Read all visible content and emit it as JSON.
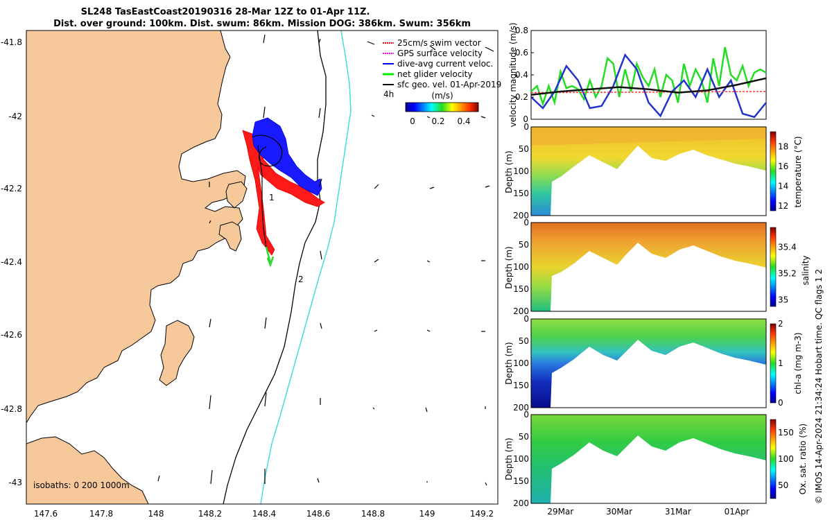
{
  "title": {
    "line1": "SL248 TasEastCoast20190316 28-Mar 12Z to 01-Apr 11Z.",
    "line2": "Dist. over ground: 100km. Dist. swum: 86km. Mission DOG: 386km. Swum: 356km"
  },
  "map": {
    "lon_ticks": [
      "147.6",
      "147.8",
      "148",
      "148.2",
      "148.4",
      "148.6",
      "148.8",
      "149",
      "149.2"
    ],
    "lat_ticks": [
      "-41.8",
      "-42",
      "-42.2",
      "-42.4",
      "-42.6",
      "-42.8",
      "-43"
    ],
    "legend": [
      {
        "label": "25cm/s swim vector",
        "color": "#ff0000"
      },
      {
        "label": "GPS surface velocity",
        "color": "#ff00ff"
      },
      {
        "label": "dive-avg current veloc.",
        "color": "#0000ff"
      },
      {
        "label": "net glider velocity",
        "color": "#00ee00"
      },
      {
        "label": "sfc geo. vel. 01-Apr-2019",
        "color": "#000000"
      }
    ],
    "colorbar": {
      "unit": "(m/s)",
      "ticks": [
        "0",
        "0.2",
        "0.4"
      ],
      "scale_note": "4h"
    },
    "isobaths_label": "isobaths: 0   200  1000m",
    "waypoints": [
      "1",
      "2"
    ]
  },
  "chart_data": [
    {
      "type": "line",
      "title": "",
      "xlabel": "",
      "ylabel": "velocity magnitude (m/s)",
      "ylim": [
        0,
        0.8
      ],
      "yticks": [
        "0",
        "0.2",
        "0.4",
        "0.6",
        "0.8"
      ],
      "xlim_days": [
        0,
        4
      ],
      "series": [
        {
          "name": "net glider velocity",
          "color": "#22dd22",
          "x": [
            0,
            0.1,
            0.2,
            0.3,
            0.4,
            0.5,
            0.6,
            0.7,
            0.8,
            0.9,
            1.0,
            1.1,
            1.2,
            1.3,
            1.4,
            1.5,
            1.6,
            1.7,
            1.8,
            1.9,
            2.0,
            2.1,
            2.2,
            2.3,
            2.4,
            2.5,
            2.6,
            2.7,
            2.8,
            2.9,
            3.0,
            3.1,
            3.2,
            3.3,
            3.4,
            3.5,
            3.6,
            3.7,
            3.8,
            3.9,
            4.0
          ],
          "values": [
            0.25,
            0.3,
            0.14,
            0.3,
            0.15,
            0.43,
            0.28,
            0.3,
            0.27,
            0.18,
            0.35,
            0.2,
            0.3,
            0.55,
            0.5,
            0.2,
            0.45,
            0.25,
            0.5,
            0.38,
            0.3,
            0.45,
            0.2,
            0.4,
            0.35,
            0.15,
            0.5,
            0.3,
            0.45,
            0.35,
            0.15,
            0.55,
            0.3,
            0.65,
            0.4,
            0.35,
            0.48,
            0.3,
            0.42,
            0.45,
            0.42
          ]
        },
        {
          "name": "dive-avg current veloc.",
          "color": "#2233cc",
          "x": [
            0,
            0.2,
            0.4,
            0.6,
            0.8,
            1.0,
            1.2,
            1.4,
            1.6,
            1.8,
            2.0,
            2.2,
            2.4,
            2.6,
            2.8,
            3.0,
            3.2,
            3.4,
            3.6,
            3.8,
            4.0
          ],
          "values": [
            0.2,
            0.1,
            0.25,
            0.48,
            0.35,
            0.1,
            0.12,
            0.3,
            0.58,
            0.45,
            0.15,
            0.03,
            0.25,
            0.35,
            0.2,
            0.45,
            0.2,
            0.35,
            0.05,
            0.02,
            0.15
          ]
        },
        {
          "name": "25cm/s swim vector",
          "color": "#ff3333",
          "x": [
            0,
            4
          ],
          "values": [
            0.24,
            0.25
          ]
        },
        {
          "name": "sfc geo. vel. 01-Apr-2019",
          "color": "#111111",
          "x": [
            0,
            0.5,
            1.0,
            1.5,
            2.0,
            2.5,
            3.0,
            3.5,
            4.0
          ],
          "values": [
            0.22,
            0.25,
            0.27,
            0.29,
            0.27,
            0.24,
            0.26,
            0.31,
            0.37
          ]
        }
      ]
    },
    {
      "type": "heatmap",
      "ylabel": "Depth (m)",
      "ylim": [
        0,
        200
      ],
      "yticks": [
        "0",
        "50",
        "100",
        "150",
        "200"
      ],
      "colorbar_label": "temperature (°C)",
      "colorbar_ticks": [
        "12",
        "14",
        "16",
        "18"
      ],
      "clim": [
        11.5,
        19.5
      ]
    },
    {
      "type": "heatmap",
      "ylabel": "Depth (m)",
      "ylim": [
        0,
        200
      ],
      "yticks": [
        "0",
        "50",
        "100",
        "150",
        "200"
      ],
      "colorbar_label": "salinity",
      "colorbar_ticks": [
        "35",
        "35.2",
        "35.4"
      ],
      "clim": [
        34.95,
        35.55
      ]
    },
    {
      "type": "heatmap",
      "ylabel": "Depth (m)",
      "ylim": [
        0,
        200
      ],
      "yticks": [
        "0",
        "50",
        "100",
        "150",
        "200"
      ],
      "colorbar_label": "chl-a (mg m-3)",
      "colorbar_ticks": [
        "0",
        "1",
        "2"
      ],
      "clim": [
        0,
        2
      ]
    },
    {
      "type": "heatmap",
      "ylabel": "Depth (m)",
      "ylim": [
        0,
        200
      ],
      "yticks": [
        "0",
        "50",
        "100",
        "150",
        "200"
      ],
      "colorbar_label": "Ox. sat. ratio (%)",
      "colorbar_ticks": [
        "50",
        "100",
        "150"
      ],
      "clim": [
        25,
        175
      ],
      "xticks": [
        "29Mar",
        "30Mar",
        "31Mar",
        "01Apr"
      ]
    }
  ],
  "side_note": "© IMOS 14-Apr-2024 21:34:24 Hobart time. QC flags 1  2"
}
